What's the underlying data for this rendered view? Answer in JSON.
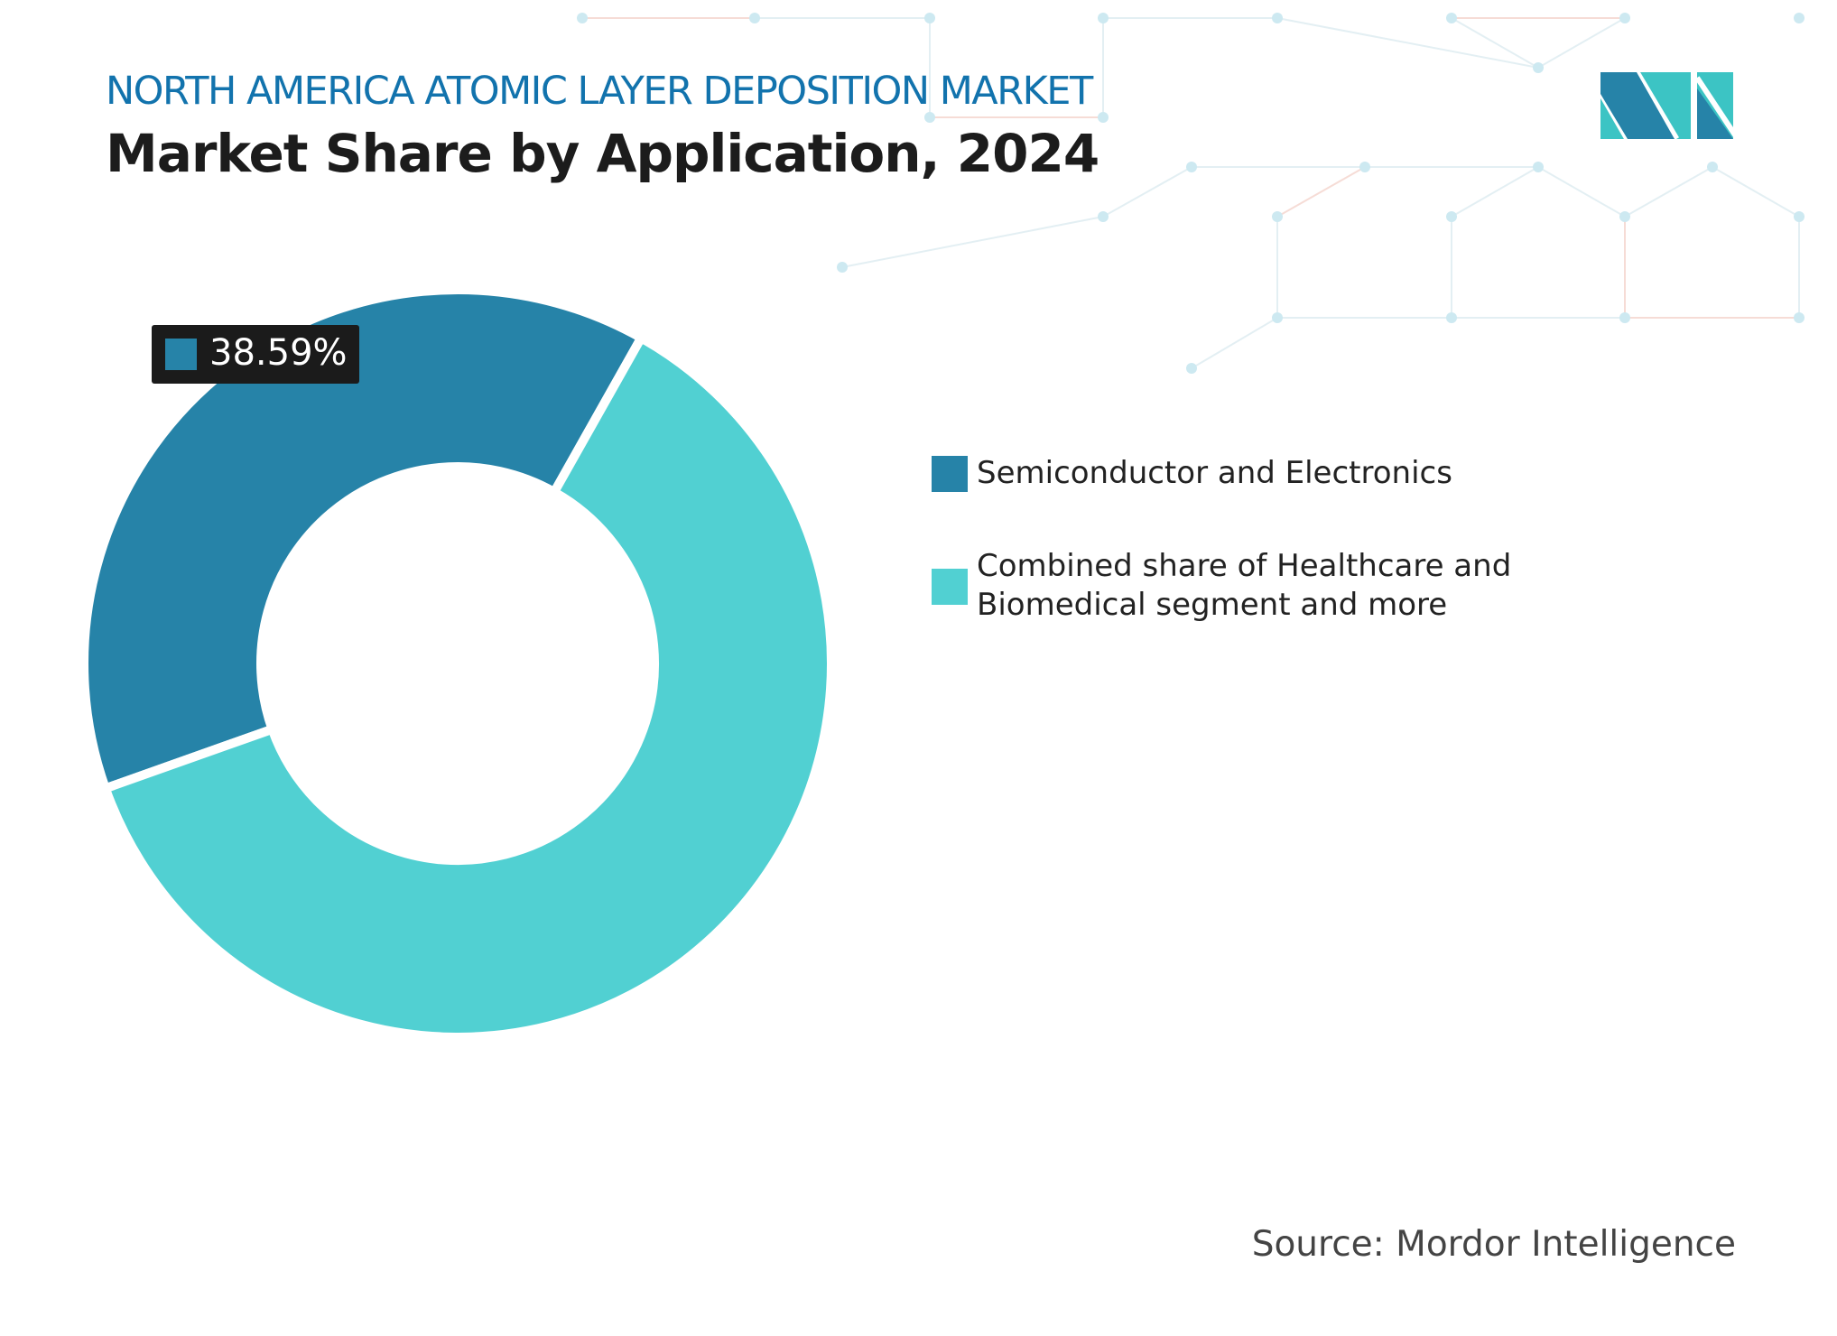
{
  "header": {
    "subtitle": "NORTH AMERICA ATOMIC LAYER DEPOSITION MARKET",
    "title": "Market Share by Application, 2024"
  },
  "chart_data": {
    "type": "pie",
    "style": "donut",
    "categories": [
      "Semiconductor and Electronics",
      "Combined share of Healthcare and Biomedical segment and more"
    ],
    "values": [
      38.59,
      61.41
    ],
    "data_labels": [
      "38.59%"
    ],
    "colors": [
      "#2683a8",
      "#51d0d2"
    ],
    "legend_position": "right"
  },
  "legend": {
    "items": [
      {
        "lines": [
          "Semiconductor and Electronics"
        ]
      },
      {
        "lines": [
          "Combined share of Healthcare and",
          "Biomedical segment and more"
        ]
      }
    ]
  },
  "source": "Source: Mordor Intelligence",
  "logo": {
    "text": "MI",
    "colors": [
      "#2683a8",
      "#3cc4c4"
    ]
  }
}
